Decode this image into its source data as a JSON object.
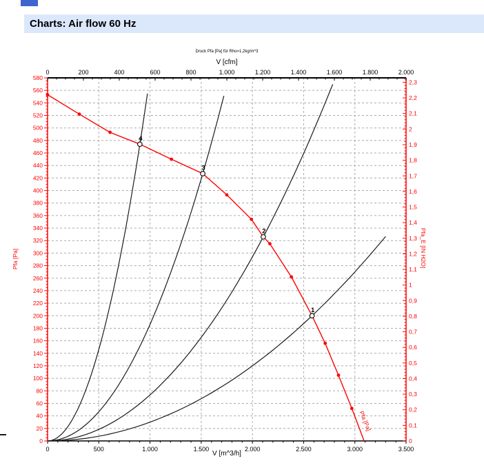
{
  "header": {
    "title": "Charts: Air flow 60 Hz"
  },
  "colors": {
    "header_bg": "#dbe8fb",
    "accent_red": "#ff0000",
    "curve_black": "#1a1a1a",
    "grid_gray": "#aaaaaa",
    "top_mark_blue": "#3f64cf"
  },
  "chart_data": {
    "type": "line",
    "title_small": "Druck Pfa [Pa] für Rho=1,2kg/m^3",
    "axes": {
      "top": {
        "label": "V [cfm]",
        "min": 0,
        "max": 2000,
        "major": 200,
        "minor": 50,
        "color": "#000000"
      },
      "bottom": {
        "label": "V [m^3/h]",
        "min": 0,
        "max": 3500,
        "major": 500,
        "minor": 100,
        "color": "#000000"
      },
      "left": {
        "label": "Pfa [Pa]",
        "min": 0,
        "max": 580,
        "major": 20,
        "minor": 5,
        "color": "#ff0000"
      },
      "right": {
        "label": "Pfa_E [IN H2O]",
        "min": 0,
        "max": 2.3286,
        "major": 0.1,
        "minor": 0.02,
        "color": "#ff0000",
        "pa_per_unit": 249.08
      }
    },
    "grid": {
      "horizontal_step_pa": 20,
      "vertical_step_m3h": 500,
      "dash": "3,3"
    },
    "fan_curve": {
      "name": "Pfa [Pa]",
      "color": "#ff0000",
      "curve_label": "Pfa [Pa]",
      "points": [
        [
          0,
          553
        ],
        [
          310,
          522
        ],
        [
          610,
          493
        ],
        [
          901,
          474
        ],
        [
          1209,
          450
        ],
        [
          1515,
          427
        ],
        [
          1750,
          393
        ],
        [
          1990,
          354
        ],
        [
          2106,
          326
        ],
        [
          2170,
          315
        ],
        [
          2380,
          262
        ],
        [
          2582,
          200
        ],
        [
          2710,
          156
        ],
        [
          2840,
          105
        ],
        [
          2970,
          52
        ],
        [
          3090,
          0
        ]
      ],
      "marker_points": [
        [
          0,
          553
        ],
        [
          310,
          522
        ],
        [
          610,
          493
        ],
        [
          1209,
          450
        ],
        [
          1750,
          393
        ],
        [
          1990,
          354
        ],
        [
          2170,
          315
        ],
        [
          2380,
          262
        ],
        [
          2710,
          156
        ],
        [
          2840,
          105
        ],
        [
          2970,
          52
        ]
      ]
    },
    "system_curves": [
      {
        "id": "1",
        "k": 3e-05,
        "v_end": 3300
      },
      {
        "id": "2",
        "k": 7.35e-05,
        "v_end": 2784
      },
      {
        "id": "3",
        "k": 0.0001861,
        "v_end": 1721
      },
      {
        "id": "4",
        "k": 0.0005838,
        "v_end": 975
      }
    ],
    "operating_points": [
      {
        "label": "1",
        "v": 2582,
        "p": 200
      },
      {
        "label": "2",
        "v": 2106,
        "p": 326
      },
      {
        "label": "3",
        "v": 1515,
        "p": 427
      },
      {
        "label": "4",
        "v": 901,
        "p": 474
      }
    ]
  }
}
